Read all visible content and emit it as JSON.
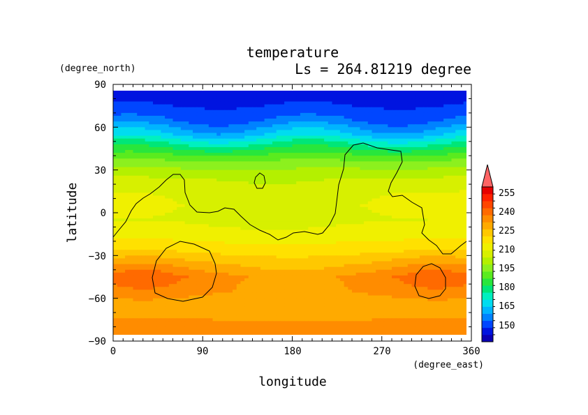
{
  "chart_data": {
    "type": "heatmap",
    "title": "temperature",
    "subtitle": "Ls = 264.81219 degree",
    "xlabel": "longitude",
    "ylabel": "latitude",
    "xunit": "(degree_east)",
    "yunit": "(degree_north)",
    "xlim": [
      0,
      360
    ],
    "ylim": [
      -90,
      90
    ],
    "x_ticks": [
      "0",
      "90",
      "180",
      "270",
      "360"
    ],
    "y_ticks": [
      "90",
      "60",
      "30",
      "0",
      "−30",
      "−60",
      "−90"
    ],
    "colorbar": {
      "labels": [
        "255",
        "240",
        "225",
        "210",
        "195",
        "180",
        "165",
        "150"
      ],
      "levels": [
        140,
        145,
        150,
        155,
        160,
        165,
        170,
        175,
        180,
        185,
        190,
        195,
        200,
        205,
        210,
        215,
        220,
        225,
        230,
        235,
        240,
        245,
        250,
        255,
        260
      ],
      "colors": [
        "#0a00b4",
        "#0014e0",
        "#0046ff",
        "#0082ff",
        "#00b4ff",
        "#00dcf0",
        "#00f0c0",
        "#00e678",
        "#28e63c",
        "#5aeb1e",
        "#8cf01e",
        "#b4f000",
        "#d7f000",
        "#f0f000",
        "#ffe100",
        "#ffc800",
        "#ffaa00",
        "#ff8c00",
        "#ff6a00",
        "#ff4600",
        "#ff2000",
        "#e60000",
        "#ff6464"
      ],
      "extend": "max"
    },
    "field": {
      "description_lat": [
        85,
        75,
        65,
        55,
        45,
        35,
        25,
        15,
        5,
        -5,
        -15,
        -25,
        -35,
        -45,
        -55,
        -65,
        -75,
        -85
      ],
      "temperature_k": [
        148,
        150,
        155,
        165,
        180,
        192,
        200,
        205,
        206,
        205,
        208,
        212,
        220,
        228,
        226,
        222,
        225,
        226
      ]
    },
    "grid": false
  }
}
